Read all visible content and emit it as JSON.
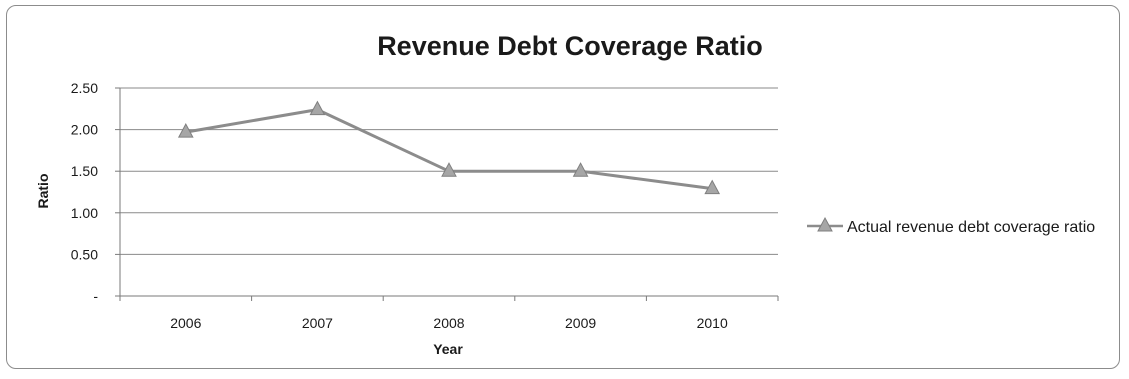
{
  "chart_data": {
    "type": "line",
    "title": "Revenue Debt Coverage Ratio",
    "xlabel": "Year",
    "ylabel": "Ratio",
    "categories": [
      "2006",
      "2007",
      "2008",
      "2009",
      "2010"
    ],
    "y_tick_labels": [
      "-",
      "0.50",
      "1.00",
      "1.50",
      "2.00",
      "2.50"
    ],
    "y_tick_values": [
      0,
      0.5,
      1.0,
      1.5,
      2.0,
      2.5
    ],
    "ylim": [
      0,
      2.5
    ],
    "series": [
      {
        "name": "Actual revenue debt coverage ratio",
        "values": [
          1.97,
          2.24,
          1.5,
          1.5,
          1.29
        ],
        "color": "#8c8c8c",
        "marker": "triangle"
      }
    ],
    "grid": true,
    "legend_position": "right"
  }
}
